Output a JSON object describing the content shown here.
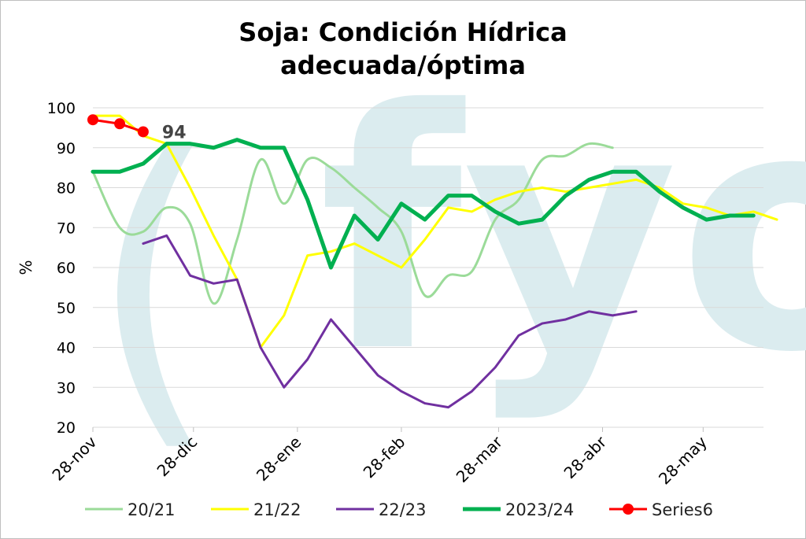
{
  "chart_data": {
    "type": "line",
    "title_line1": "Soja: Condición Hídrica",
    "title_line2": "adecuada/óptima",
    "ylabel": "%",
    "ylim": [
      20,
      100
    ],
    "yticks": [
      100,
      90,
      80,
      70,
      60,
      50,
      40,
      30,
      20
    ],
    "xlim": [
      "2023-11-28",
      "2024-06-15"
    ],
    "xticks": [
      {
        "label": "28-nov",
        "date": "2023-11-28"
      },
      {
        "label": "28-dic",
        "date": "2023-12-28"
      },
      {
        "label": "28-ene",
        "date": "2024-01-28"
      },
      {
        "label": "28-feb",
        "date": "2024-02-28"
      },
      {
        "label": "28-mar",
        "date": "2024-03-28"
      },
      {
        "label": "28-abr",
        "date": "2024-04-28"
      },
      {
        "label": "28-may",
        "date": "2024-05-28"
      }
    ],
    "grid": true,
    "legend_position": "bottom",
    "watermark": "()fyo",
    "annotation": {
      "text": "94",
      "series": "Series6",
      "date": "2023-12-13",
      "value": 94
    },
    "series": [
      {
        "name": "20/21",
        "color": "#9bdb99",
        "width": 3,
        "markers": false,
        "smooth": true,
        "points": [
          [
            "2023-11-28",
            84
          ],
          [
            "2023-12-06",
            70
          ],
          [
            "2023-12-13",
            69
          ],
          [
            "2023-12-20",
            75
          ],
          [
            "2023-12-27",
            71
          ],
          [
            "2024-01-03",
            51
          ],
          [
            "2024-01-10",
            67
          ],
          [
            "2024-01-17",
            87
          ],
          [
            "2024-01-24",
            76
          ],
          [
            "2024-01-31",
            87
          ],
          [
            "2024-02-07",
            85
          ],
          [
            "2024-02-14",
            80
          ],
          [
            "2024-02-21",
            75
          ],
          [
            "2024-02-28",
            69
          ],
          [
            "2024-03-06",
            53
          ],
          [
            "2024-03-13",
            58
          ],
          [
            "2024-03-20",
            59
          ],
          [
            "2024-03-27",
            72
          ],
          [
            "2024-04-03",
            77
          ],
          [
            "2024-04-10",
            87
          ],
          [
            "2024-04-17",
            88
          ],
          [
            "2024-04-24",
            91
          ],
          [
            "2024-05-01",
            90
          ]
        ]
      },
      {
        "name": "21/22",
        "color": "#ffff00",
        "width": 3,
        "markers": false,
        "smooth": false,
        "points": [
          [
            "2023-11-28",
            98
          ],
          [
            "2023-12-06",
            98
          ],
          [
            "2023-12-13",
            93
          ],
          [
            "2023-12-20",
            91
          ],
          [
            "2023-12-27",
            80
          ],
          [
            "2024-01-03",
            68
          ],
          [
            "2024-01-10",
            57
          ],
          [
            "2024-01-17",
            40
          ],
          [
            "2024-01-24",
            48
          ],
          [
            "2024-01-31",
            63
          ],
          [
            "2024-02-07",
            64
          ],
          [
            "2024-02-14",
            66
          ],
          [
            "2024-02-21",
            63
          ],
          [
            "2024-02-28",
            60
          ],
          [
            "2024-03-06",
            67
          ],
          [
            "2024-03-13",
            75
          ],
          [
            "2024-03-20",
            74
          ],
          [
            "2024-03-27",
            77
          ],
          [
            "2024-04-03",
            79
          ],
          [
            "2024-04-10",
            80
          ],
          [
            "2024-04-17",
            79
          ],
          [
            "2024-04-24",
            80
          ],
          [
            "2024-05-01",
            81
          ],
          [
            "2024-05-08",
            82
          ],
          [
            "2024-05-15",
            80
          ],
          [
            "2024-05-22",
            76
          ],
          [
            "2024-05-29",
            75
          ],
          [
            "2024-06-05",
            73
          ],
          [
            "2024-06-12",
            74
          ],
          [
            "2024-06-19",
            72
          ]
        ]
      },
      {
        "name": "22/23",
        "color": "#7030a0",
        "width": 3,
        "markers": false,
        "smooth": false,
        "points": [
          [
            "2023-12-13",
            66
          ],
          [
            "2023-12-20",
            68
          ],
          [
            "2023-12-27",
            58
          ],
          [
            "2024-01-03",
            56
          ],
          [
            "2024-01-10",
            57
          ],
          [
            "2024-01-17",
            40
          ],
          [
            "2024-01-24",
            30
          ],
          [
            "2024-01-31",
            37
          ],
          [
            "2024-02-07",
            47
          ],
          [
            "2024-02-14",
            40
          ],
          [
            "2024-02-21",
            33
          ],
          [
            "2024-02-28",
            29
          ],
          [
            "2024-03-06",
            26
          ],
          [
            "2024-03-13",
            25
          ],
          [
            "2024-03-20",
            29
          ],
          [
            "2024-03-27",
            35
          ],
          [
            "2024-04-03",
            43
          ],
          [
            "2024-04-10",
            46
          ],
          [
            "2024-04-17",
            47
          ],
          [
            "2024-04-24",
            49
          ],
          [
            "2024-05-01",
            48
          ],
          [
            "2024-05-08",
            49
          ]
        ]
      },
      {
        "name": "2023/24",
        "color": "#00b050",
        "width": 5,
        "markers": false,
        "smooth": false,
        "points": [
          [
            "2023-11-28",
            84
          ],
          [
            "2023-12-06",
            84
          ],
          [
            "2023-12-13",
            86
          ],
          [
            "2023-12-20",
            91
          ],
          [
            "2023-12-27",
            91
          ],
          [
            "2024-01-03",
            90
          ],
          [
            "2024-01-10",
            92
          ],
          [
            "2024-01-17",
            90
          ],
          [
            "2024-01-24",
            90
          ],
          [
            "2024-01-31",
            77
          ],
          [
            "2024-02-07",
            60
          ],
          [
            "2024-02-14",
            73
          ],
          [
            "2024-02-21",
            67
          ],
          [
            "2024-02-28",
            76
          ],
          [
            "2024-03-06",
            72
          ],
          [
            "2024-03-13",
            78
          ],
          [
            "2024-03-20",
            78
          ],
          [
            "2024-03-27",
            74
          ],
          [
            "2024-04-03",
            71
          ],
          [
            "2024-04-10",
            72
          ],
          [
            "2024-04-17",
            78
          ],
          [
            "2024-04-24",
            82
          ],
          [
            "2024-05-01",
            84
          ],
          [
            "2024-05-08",
            84
          ],
          [
            "2024-05-15",
            79
          ],
          [
            "2024-05-22",
            75
          ],
          [
            "2024-05-29",
            72
          ],
          [
            "2024-06-05",
            73
          ],
          [
            "2024-06-12",
            73
          ]
        ]
      },
      {
        "name": "Series6",
        "color": "#ff0000",
        "width": 3,
        "markers": true,
        "smooth": false,
        "points": [
          [
            "2023-11-28",
            97
          ],
          [
            "2023-12-06",
            96
          ],
          [
            "2023-12-13",
            94
          ]
        ]
      }
    ]
  }
}
